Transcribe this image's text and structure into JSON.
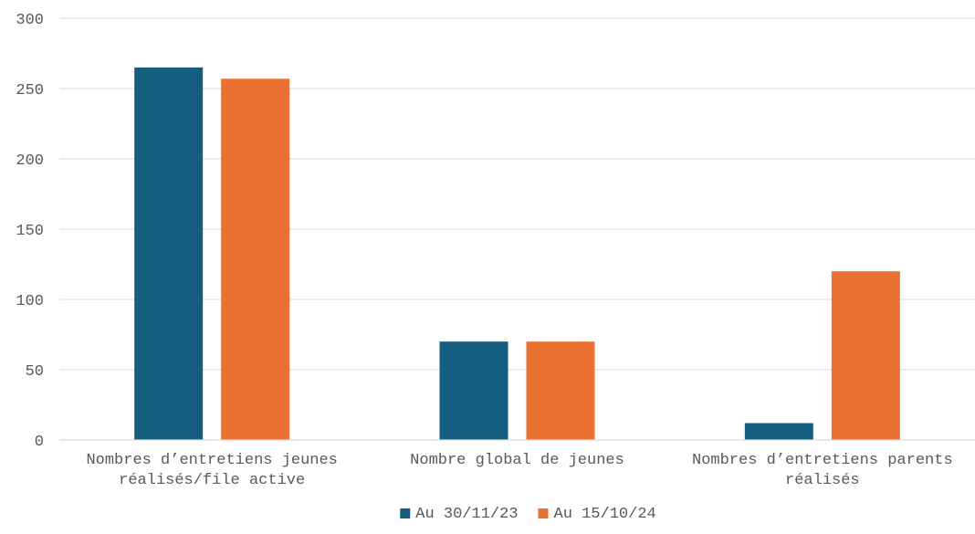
{
  "chart_data": {
    "type": "bar",
    "title": "",
    "xlabel": "",
    "ylabel": "",
    "categories": [
      [
        "Nombres d’entretiens jeunes",
        "réalisés/file active"
      ],
      [
        "Nombre global de jeunes"
      ],
      [
        "Nombres d’entretiens parents",
        "réalisés"
      ]
    ],
    "series": [
      {
        "name": "Au 30/11/23",
        "color": "#155E7F",
        "values": [
          265,
          70,
          12
        ]
      },
      {
        "name": "Au 15/10/24",
        "color": "#E97132",
        "values": [
          257,
          70,
          120
        ]
      }
    ],
    "ylim": [
      0,
      300
    ],
    "yticks": [
      "0",
      "50",
      "100",
      "150",
      "200",
      "250",
      "300"
    ],
    "grid": true,
    "legend_position": "bottom"
  }
}
